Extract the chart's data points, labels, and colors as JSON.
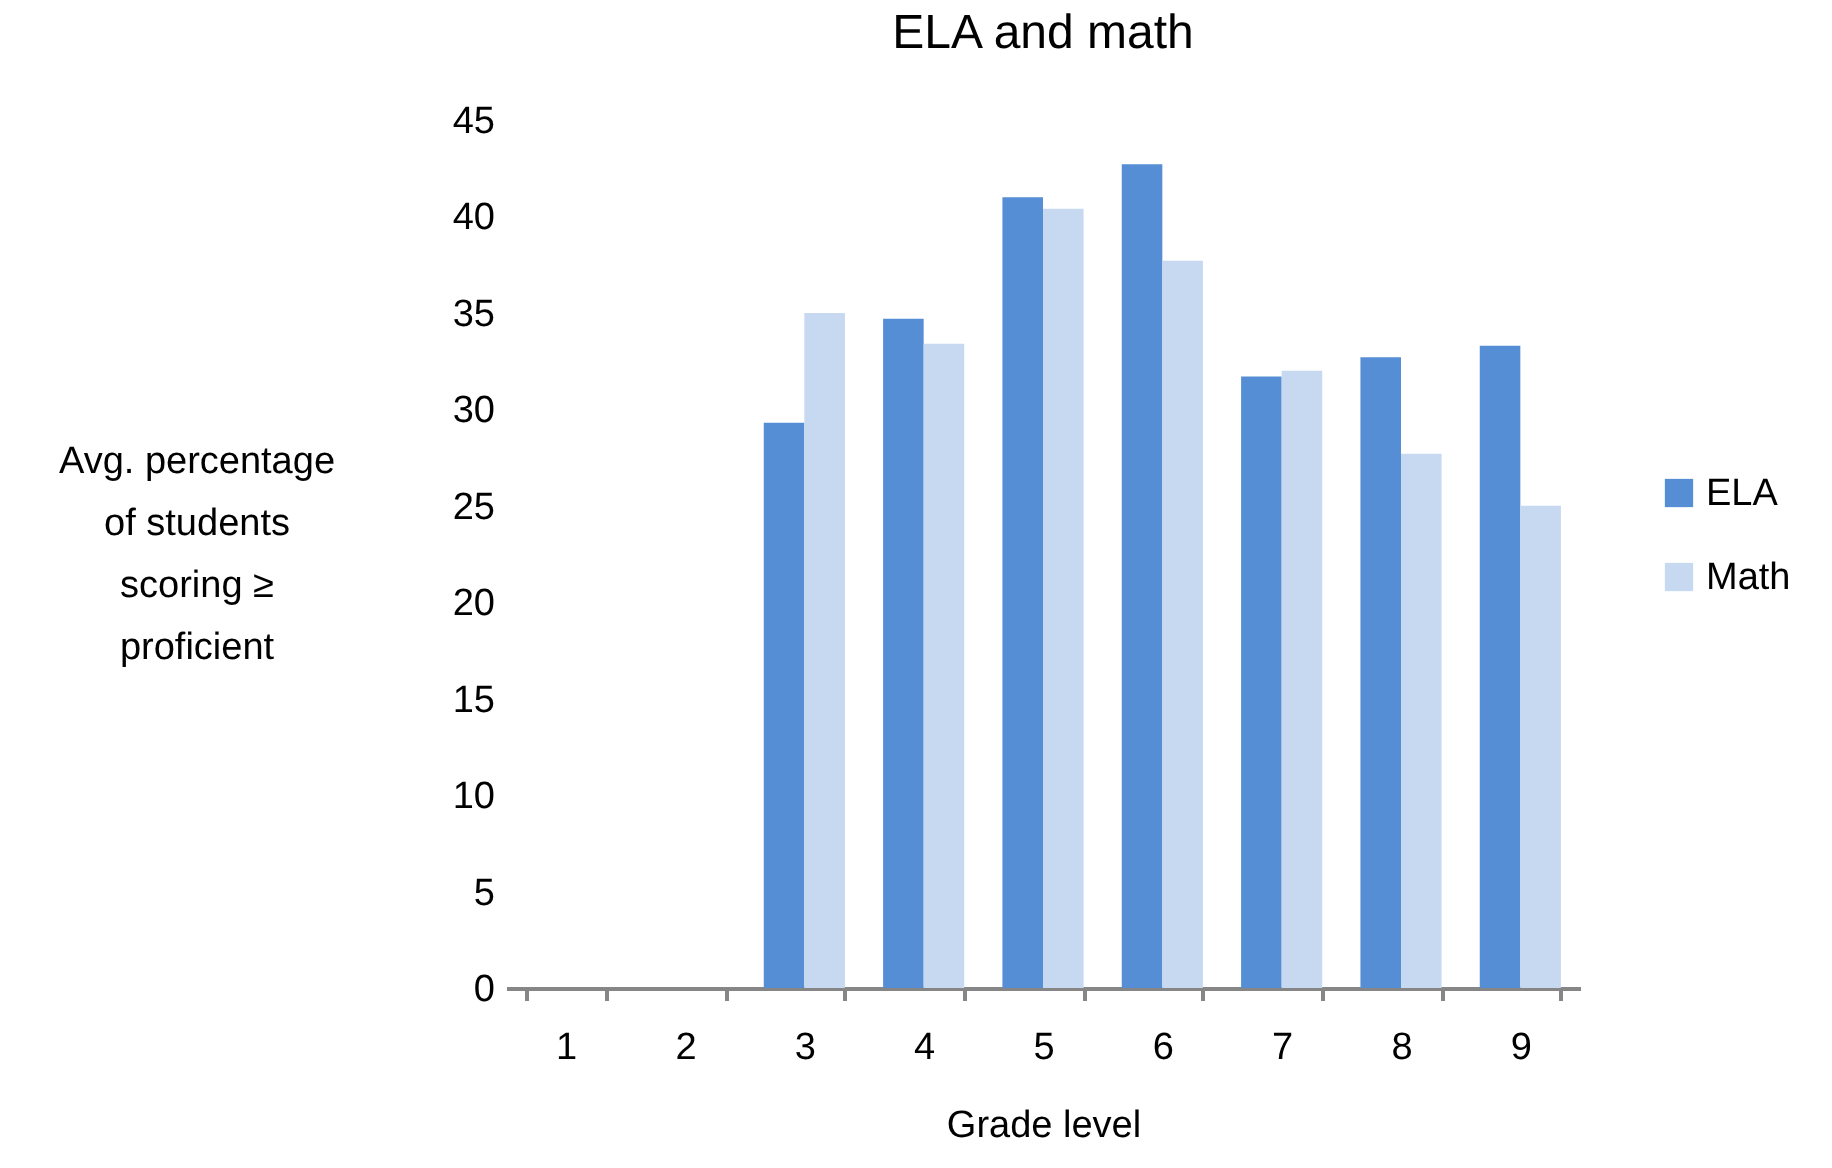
{
  "chart_data": {
    "type": "bar",
    "title": "ELA and math",
    "xlabel": "Grade level",
    "ylabel": "Avg. percentage of students scoring ≥ proficient",
    "categories": [
      "1",
      "2",
      "3",
      "4",
      "5",
      "6",
      "7",
      "8",
      "9"
    ],
    "series": [
      {
        "name": "ELA",
        "color": "#558ed5",
        "values": [
          null,
          null,
          29.3,
          34.7,
          41.0,
          42.7,
          31.7,
          32.7,
          33.3
        ]
      },
      {
        "name": "Math",
        "color": "#c6d9f1",
        "values": [
          null,
          null,
          35.0,
          33.4,
          40.4,
          37.7,
          32.0,
          27.7,
          25.0
        ]
      }
    ],
    "ylim": [
      0,
      45
    ],
    "yticks": [
      0,
      5,
      10,
      15,
      20,
      25,
      30,
      35,
      40,
      45
    ],
    "grid": false,
    "legend": "right"
  }
}
